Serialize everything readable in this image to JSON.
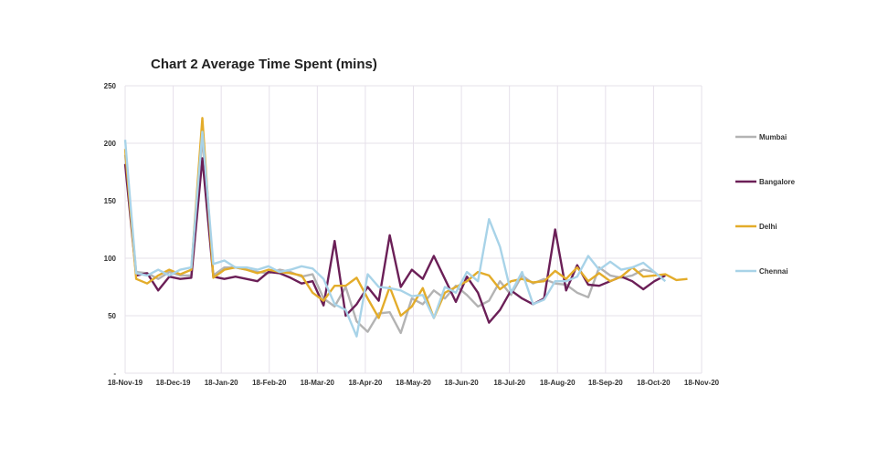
{
  "chart_data": {
    "type": "line",
    "title": "Chart 2 Average Time Spent (mins)",
    "xlabel": "",
    "ylabel": "",
    "ylim": [
      0,
      250
    ],
    "yticks": [
      0,
      50,
      100,
      150,
      200,
      250
    ],
    "ytick_labels": [
      "-",
      "50",
      "100",
      "150",
      "200",
      "250"
    ],
    "x_tick_labels": [
      "18-Nov-19",
      "18-Dec-19",
      "18-Jan-20",
      "18-Feb-20",
      "18-Mar-20",
      "18-Apr-20",
      "18-May-20",
      "18-Jun-20",
      "18-Jul-20",
      "18-Aug-20",
      "18-Sep-20",
      "18-Oct-20",
      "18-Nov-20"
    ],
    "x_start": "2019-11-18",
    "x_end": "2020-11-18",
    "grid": true,
    "legend_position": "right",
    "series": [
      {
        "name": "Mumbai",
        "color": "#b3b3b3",
        "values": [
          190,
          88,
          87,
          82,
          88,
          85,
          85,
          205,
          85,
          92,
          92,
          90,
          88,
          87,
          90,
          88,
          84,
          86,
          65,
          58,
          75,
          45,
          36,
          52,
          53,
          35,
          65,
          60,
          72,
          65,
          76,
          68,
          58,
          63,
          80,
          68,
          85,
          78,
          82,
          78,
          77,
          70,
          66,
          92,
          85,
          83,
          85,
          90,
          88
        ]
      },
      {
        "name": "Bangalore",
        "color": "#6b1f57",
        "values": [
          182,
          85,
          87,
          72,
          84,
          82,
          83,
          187,
          84,
          82,
          84,
          82,
          80,
          88,
          87,
          83,
          78,
          80,
          59,
          115,
          50,
          60,
          75,
          63,
          120,
          75,
          90,
          82,
          102,
          82,
          62,
          84,
          70,
          44,
          55,
          72,
          65,
          60,
          65,
          125,
          72,
          94,
          77,
          76,
          80,
          84,
          80,
          73,
          80,
          85
        ]
      },
      {
        "name": "Delhi",
        "color": "#e3ac2a",
        "values": [
          195,
          82,
          78,
          85,
          90,
          86,
          90,
          222,
          83,
          90,
          92,
          90,
          87,
          90,
          88,
          87,
          85,
          70,
          63,
          76,
          76,
          83,
          65,
          48,
          75,
          50,
          58,
          74,
          48,
          70,
          75,
          80,
          88,
          85,
          73,
          80,
          82,
          79,
          80,
          89,
          82,
          92,
          80,
          87,
          80,
          84,
          92,
          84,
          85,
          86,
          81,
          82
        ]
      },
      {
        "name": "Chennai",
        "color": "#a8d3e8",
        "values": [
          203,
          87,
          85,
          90,
          85,
          90,
          92,
          210,
          95,
          98,
          92,
          92,
          90,
          93,
          88,
          90,
          93,
          91,
          82,
          60,
          55,
          32,
          86,
          75,
          74,
          72,
          67,
          68,
          48,
          75,
          70,
          88,
          80,
          134,
          110,
          70,
          88,
          60,
          64,
          80,
          80,
          84,
          102,
          90,
          97,
          90,
          92,
          96,
          88,
          80
        ]
      }
    ]
  }
}
